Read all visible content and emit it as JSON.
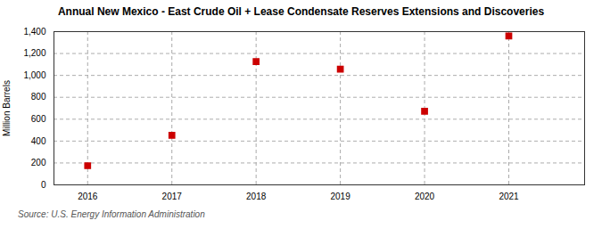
{
  "chart_data": {
    "type": "scatter",
    "title": "Annual New Mexico - East Crude Oil + Lease Condensate Reserves Extensions and Discoveries",
    "ylabel": "Million Barrels",
    "source": "Source: U.S. Energy Information Administration",
    "x": [
      2016,
      2017,
      2018,
      2019,
      2020,
      2021
    ],
    "values": [
      175,
      452,
      1127,
      1057,
      672,
      1360
    ],
    "color": "#cc0000",
    "marker": "square",
    "xlim": [
      2015.6,
      2021.9
    ],
    "xticks": [
      2016,
      2017,
      2018,
      2019,
      2020,
      2021
    ],
    "ylim": [
      0,
      1400
    ],
    "yticks": [
      0,
      200,
      400,
      600,
      800,
      {
        "value": 1000,
        "label": "1,000"
      },
      {
        "value": 1200,
        "label": "1,200"
      },
      {
        "value": 1400,
        "label": "1,400"
      }
    ],
    "grid": true
  }
}
